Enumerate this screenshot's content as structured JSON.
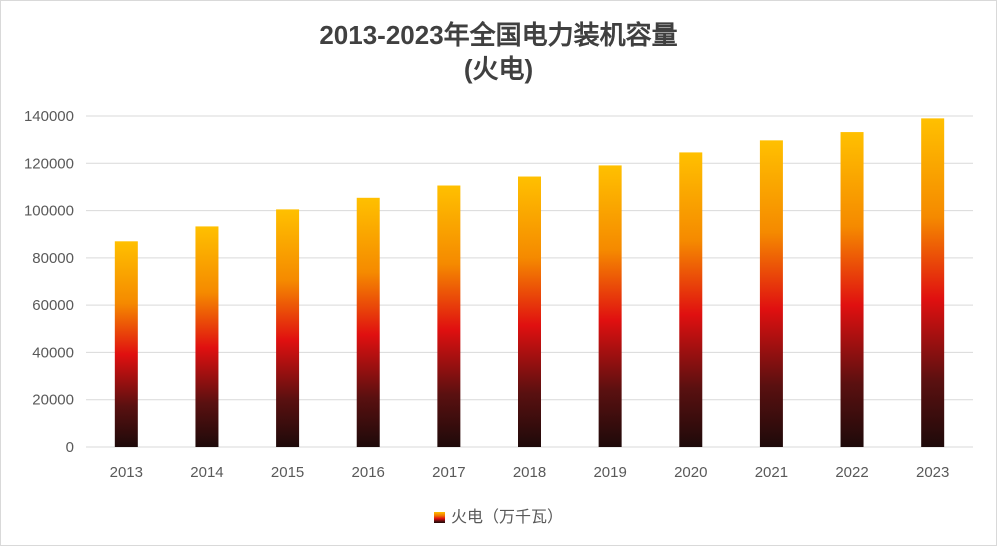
{
  "chart_data": {
    "type": "bar",
    "title_line1": "2013-2023年全国电力装机容量",
    "title_line2": "(火电)",
    "categories": [
      "2013",
      "2014",
      "2015",
      "2016",
      "2017",
      "2018",
      "2019",
      "2020",
      "2021",
      "2022",
      "2023"
    ],
    "series": [
      {
        "name": "火电（万千瓦）",
        "values": [
          87000,
          93300,
          100500,
          105400,
          110600,
          114400,
          119100,
          124600,
          129700,
          133200,
          139000
        ]
      }
    ],
    "ylim": [
      0,
      140000
    ],
    "yticks": [
      "0",
      "20000",
      "40000",
      "60000",
      "80000",
      "100000",
      "120000",
      "140000"
    ],
    "grid": true,
    "legend_position": "bottom",
    "colors": {
      "bar_top": "#ffc000",
      "bar_mid": "#e01010",
      "bar_bottom": "#200808",
      "grid": "#d9d9d9",
      "text": "#595959",
      "title": "#404040"
    }
  }
}
